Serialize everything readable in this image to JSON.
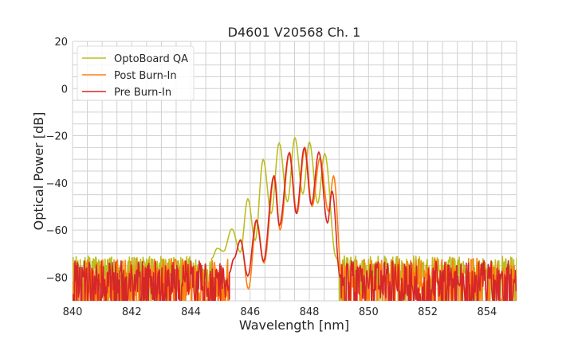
{
  "chart_data": {
    "type": "line",
    "title": "D4601 V20568 Ch. 1",
    "xlabel": "Wavelength [nm]",
    "ylabel": "Optical Power [dB]",
    "xlim": [
      840,
      855
    ],
    "ylim": [
      -90,
      20
    ],
    "xticks": [
      840,
      842,
      844,
      846,
      848,
      850,
      852,
      854
    ],
    "xtick_labels": [
      "840",
      "842",
      "844",
      "846",
      "848",
      "850",
      "852",
      "854"
    ],
    "yticks": [
      20,
      0,
      -20,
      -40,
      -60,
      -80
    ],
    "ytick_labels": [
      "20",
      "0",
      "−20",
      "−40",
      "−60",
      "−80"
    ],
    "grid": true,
    "minor_grid_step": {
      "x": 0.5,
      "y": 5
    },
    "legend_position": "top-left",
    "series": [
      {
        "name": "OptoBoard QA",
        "color": "#bcbd22",
        "noise_range": [
          -84,
          -71
        ],
        "noise_seed": 7,
        "x": [
          844.7,
          844.89,
          845.1,
          845.38,
          845.67,
          845.92,
          846.17,
          846.44,
          846.71,
          846.98,
          847.26,
          847.51,
          847.78,
          848.0,
          848.28,
          848.52,
          848.9,
          849.0
        ],
        "y": [
          -72,
          -67.7,
          -69,
          -59.5,
          -69.4,
          -46.7,
          -64.4,
          -30,
          -53,
          -23,
          -48,
          -20.8,
          -44.6,
          -22.7,
          -48.6,
          -27.5,
          -71.6,
          -74
        ]
      },
      {
        "name": "Post Burn-In",
        "color": "#ff7f0e",
        "noise_range": [
          -95,
          -72
        ],
        "noise_seed": 21,
        "x": [
          845.3,
          845.45,
          845.68,
          845.94,
          846.22,
          846.47,
          846.82,
          847.01,
          847.33,
          847.58,
          847.85,
          848.09,
          848.36,
          848.64,
          848.82,
          849.1
        ],
        "y": [
          -78,
          -72,
          -64,
          -85,
          -56,
          -74,
          -37,
          -60,
          -27,
          -53,
          -25,
          -50,
          -29.3,
          -52,
          -37,
          -80
        ]
      },
      {
        "name": "Pre Burn-In",
        "color": "#d62728",
        "noise_range": [
          -95,
          -73
        ],
        "noise_seed": 42,
        "x": [
          845.3,
          845.45,
          845.67,
          845.92,
          846.21,
          846.45,
          846.8,
          846.99,
          847.32,
          847.56,
          847.83,
          848.07,
          848.32,
          848.61,
          848.77,
          849.04
        ],
        "y": [
          -78,
          -72,
          -64.4,
          -79.5,
          -55.7,
          -73.3,
          -37,
          -58.1,
          -27.2,
          -53,
          -25,
          -49.2,
          -26.9,
          -57,
          -43.5,
          -80
        ]
      }
    ]
  }
}
